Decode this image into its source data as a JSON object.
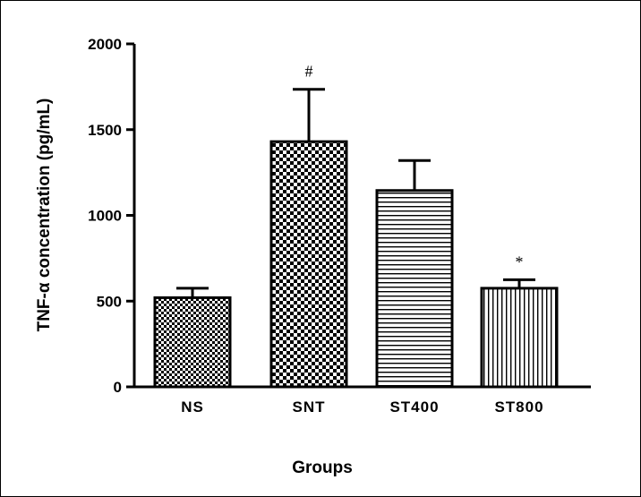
{
  "chart_data": {
    "type": "bar",
    "title": "",
    "xlabel": "Groups",
    "ylabel": "TNF-α concentration (pg/mL)",
    "ylim": [
      0,
      2000
    ],
    "yticks": [
      0,
      500,
      1000,
      1500,
      2000
    ],
    "categories": [
      "NS",
      "SNT",
      "ST400",
      "ST800"
    ],
    "values": [
      520,
      1430,
      1145,
      575
    ],
    "errors": [
      55,
      305,
      175,
      50
    ],
    "annotations": [
      "",
      "#",
      "",
      "*"
    ],
    "patterns": [
      "small-check",
      "large-check",
      "horizontal-lines",
      "vertical-lines"
    ]
  }
}
